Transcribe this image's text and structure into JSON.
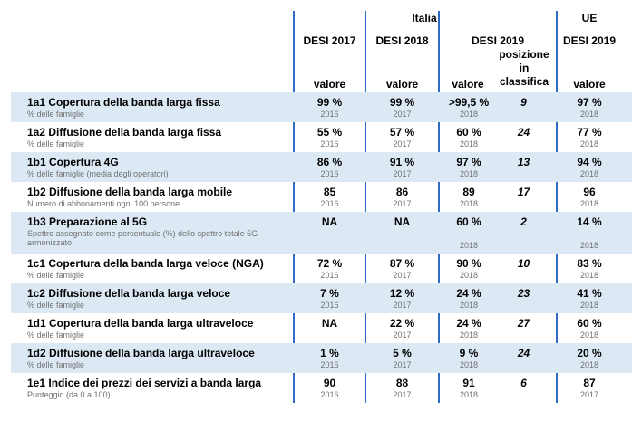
{
  "header": {
    "group_italia": "Italia",
    "group_ue": "UE",
    "col_desi2017": "DESI 2017",
    "col_desi2018": "DESI 2018",
    "col_desi2019": "DESI 2019",
    "col_ue2019": "DESI 2019",
    "rank_line1": "posizione",
    "rank_line2": "in",
    "rank_line3": "classifica",
    "valore": "valore"
  },
  "rows": [
    {
      "title": "1a1 Copertura della banda larga fissa",
      "sub": "% delle famiglie",
      "v2017": "99 %",
      "y2017": "2016",
      "v2018": "99 %",
      "y2018": "2017",
      "v2019": ">99,5 %",
      "y2019": "2018",
      "rank": "9",
      "ue": "97 %",
      "yue": "2018"
    },
    {
      "title": "1a2 Diffusione della banda larga fissa",
      "sub": "% delle famiglie",
      "v2017": "55 %",
      "y2017": "2016",
      "v2018": "57 %",
      "y2018": "2017",
      "v2019": "60 %",
      "y2019": "2018",
      "rank": "24",
      "ue": "77 %",
      "yue": "2018"
    },
    {
      "title": "1b1 Copertura 4G",
      "sub": "% delle famiglie (media degli operatori)",
      "v2017": "86 %",
      "y2017": "2016",
      "v2018": "91 %",
      "y2018": "2017",
      "v2019": "97 %",
      "y2019": "2018",
      "rank": "13",
      "ue": "94 %",
      "yue": "2018"
    },
    {
      "title": "1b2 Diffusione della banda larga mobile",
      "sub": "Numero di abbonamenti ogni 100 persone",
      "v2017": "85",
      "y2017": "2016",
      "v2018": "86",
      "y2018": "2017",
      "v2019": "89",
      "y2019": "2018",
      "rank": "17",
      "ue": "96",
      "yue": "2018"
    },
    {
      "title": "1b3 Preparazione al 5G",
      "sub": "Spettro assegnato come percentuale (%) dello spettro totale 5G armonizzato",
      "v2017": "NA",
      "y2017": "",
      "v2018": "NA",
      "y2018": "",
      "v2019": "60 %",
      "y2019": "2018",
      "rank": "2",
      "ue": "14 %",
      "yue": "2018"
    },
    {
      "title": "1c1 Copertura della banda larga veloce (NGA)",
      "sub": "% delle famiglie",
      "v2017": "72 %",
      "y2017": "2016",
      "v2018": "87 %",
      "y2018": "2017",
      "v2019": "90 %",
      "y2019": "2018",
      "rank": "10",
      "ue": "83 %",
      "yue": "2018"
    },
    {
      "title": "1c2 Diffusione della banda larga veloce",
      "sub": "% delle famiglie",
      "v2017": "7 %",
      "y2017": "2016",
      "v2018": "12 %",
      "y2018": "2017",
      "v2019": "24 %",
      "y2019": "2018",
      "rank": "23",
      "ue": "41 %",
      "yue": "2018"
    },
    {
      "title": "1d1 Copertura della banda larga ultraveloce",
      "sub": "% delle famiglie",
      "v2017": "NA",
      "y2017": "",
      "v2018": "22 %",
      "y2018": "2017",
      "v2019": "24 %",
      "y2019": "2018",
      "rank": "27",
      "ue": "60 %",
      "yue": "2018"
    },
    {
      "title": "1d2 Diffusione della banda larga ultraveloce",
      "sub": "% delle famiglie",
      "v2017": "1 %",
      "y2017": "2016",
      "v2018": "5 %",
      "y2018": "2017",
      "v2019": "9 %",
      "y2019": "2018",
      "rank": "24",
      "ue": "20 %",
      "yue": "2018"
    },
    {
      "title": "1e1 Indice dei prezzi dei servizi a banda larga",
      "sub": "Punteggio (da 0 a 100)",
      "v2017": "90",
      "y2017": "2016",
      "v2018": "88",
      "y2018": "2017",
      "v2019": "91",
      "y2019": "2018",
      "rank": "6",
      "ue": "87",
      "yue": "2017"
    }
  ]
}
